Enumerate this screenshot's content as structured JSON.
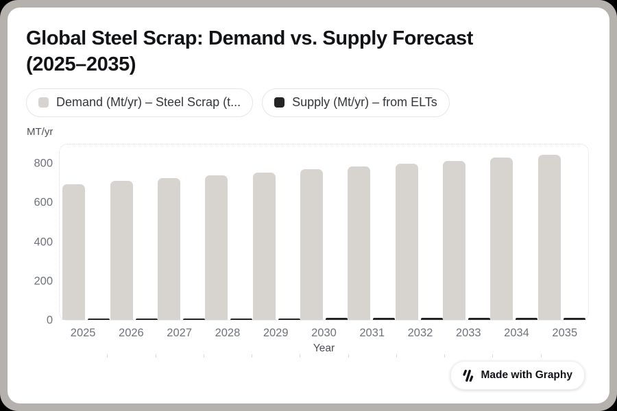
{
  "header": {
    "title_line1": "Global Steel Scrap: Demand vs. Supply Forecast",
    "title_line2": "(2025–2035)"
  },
  "legend": {
    "items": [
      {
        "label": "Demand (Mt/yr) – Steel Scrap (t...",
        "swatch_color": "#d7d3cf"
      },
      {
        "label": "Supply (Mt/yr) – from ELTs",
        "swatch_color": "#242424"
      }
    ]
  },
  "axis": {
    "y_unit_label": "MT/yr",
    "x_label": "Year"
  },
  "badge": {
    "label": "Made with Graphy",
    "logo_icon": "graphy-logo-icon"
  },
  "colors": {
    "demand_bar": "#d7d3cf",
    "supply_bar": "#242424",
    "card_background": "#ffffff",
    "outer_rim": "#b5b2ae",
    "page_background": "#000000",
    "tick_text": "#6f7379",
    "plot_border": "#dcdcdc"
  },
  "chart_data": {
    "type": "bar",
    "title": "Global Steel Scrap: Demand vs. Supply Forecast (2025–2035)",
    "xlabel": "Year",
    "ylabel": "MT/yr",
    "categories": [
      "2025",
      "2026",
      "2027",
      "2028",
      "2029",
      "2030",
      "2031",
      "2032",
      "2033",
      "2034",
      "2035"
    ],
    "series": [
      {
        "name": "Demand (Mt/yr) – Steel Scrap (t...",
        "color": "#d7d3cf",
        "values": [
          700,
          715,
          730,
          745,
          760,
          775,
          790,
          805,
          820,
          835,
          850
        ]
      },
      {
        "name": "Supply (Mt/yr) – from ELTs",
        "color": "#242424",
        "values": [
          5,
          5.5,
          6,
          6.5,
          7,
          7.5,
          8,
          8.5,
          9,
          9.5,
          10
        ]
      }
    ],
    "ylim": [
      0,
      905
    ],
    "yticks": [
      0,
      200,
      400,
      600,
      800
    ],
    "grid": false,
    "legend_position": "top"
  }
}
